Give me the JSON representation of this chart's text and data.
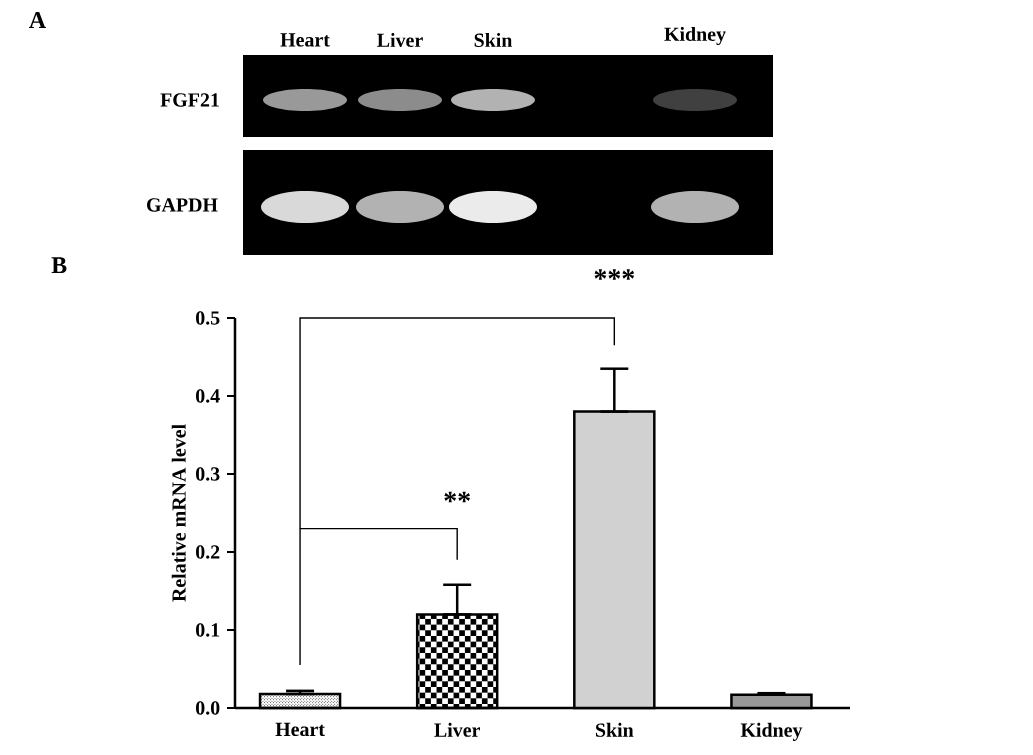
{
  "chart_data": [
    {
      "type": "other",
      "title": "A",
      "annotations": [
        "Heart",
        "Liver",
        "Skin",
        "Kidney",
        "FGF21",
        "GAPDH"
      ]
    },
    {
      "type": "bar",
      "title": "B",
      "ylabel": "Relative mRNA level",
      "categories": [
        "Heart",
        "Liver",
        "Skin",
        "Kidney"
      ],
      "values": [
        0.018,
        0.12,
        0.38,
        0.017
      ],
      "errors": [
        [
          0.018,
          0.022
        ],
        [
          0.12,
          0.158
        ],
        [
          0.38,
          0.435
        ],
        [
          0.017,
          0.019
        ]
      ],
      "colors": [
        "#000000",
        "#000000",
        "#000000",
        "#000000"
      ],
      "ylim": [
        0,
        0.5
      ],
      "yticks": [
        {
          "value": 0,
          "label": "0.0"
        },
        0.1,
        0.2,
        0.3,
        0.4,
        0.5
      ],
      "annotations": [
        "**",
        "***"
      ],
      "grid": false
    }
  ]
}
